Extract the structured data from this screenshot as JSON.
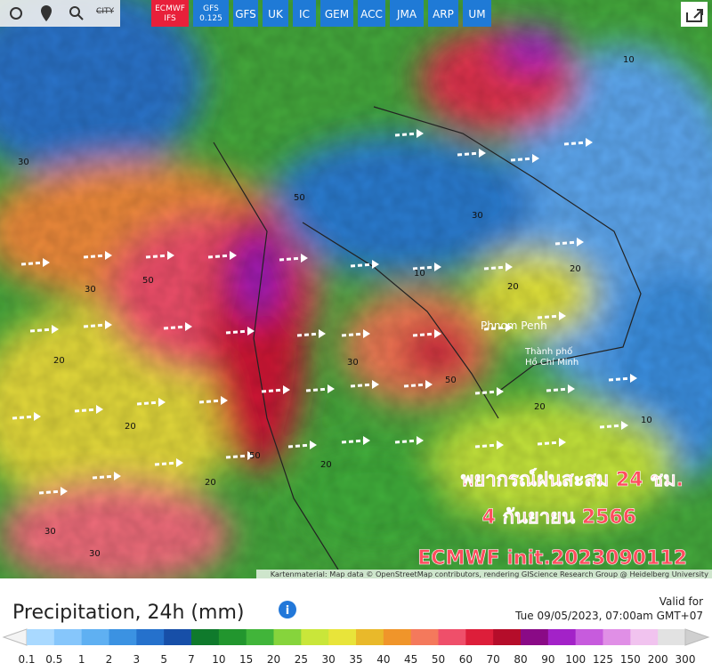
{
  "toolbar": {
    "city": "CITY",
    "models": [
      {
        "lines": [
          "ECMWF",
          "IFS"
        ],
        "active": true
      },
      {
        "lines": [
          "GFS",
          "0.125"
        ],
        "active": false
      },
      {
        "lines": [
          "GFS"
        ],
        "active": false
      },
      {
        "lines": [
          "UK"
        ],
        "active": false
      },
      {
        "lines": [
          "IC"
        ],
        "active": false
      },
      {
        "lines": [
          "GEM"
        ],
        "active": false
      },
      {
        "lines": [
          "ACC"
        ],
        "active": false
      },
      {
        "lines": [
          "JMA"
        ],
        "active": false
      },
      {
        "lines": [
          "ARP"
        ],
        "active": false
      },
      {
        "lines": [
          "UM"
        ],
        "active": false
      }
    ]
  },
  "map": {
    "places": [
      "Phnom Penh",
      "Thành phố",
      "Hồ Chí Minh"
    ],
    "contour_labels": [
      "30",
      "50",
      "30",
      "20",
      "20",
      "50",
      "30",
      "20",
      "30",
      "10",
      "20",
      "50",
      "20",
      "10",
      "30",
      "20",
      "10",
      "50",
      "20",
      "30"
    ],
    "overlay": [
      "พยากรณ์ฝนสะสม 24 ชม.",
      "4 กันยายน 2566",
      "ECMWF init.2023090112"
    ],
    "attribution": "Kartenmaterial: Map data © OpenStreetMap contributors, rendering GIScience Research Group @ Heidelberg University"
  },
  "legend": {
    "title": "Precipitation, 24h (mm)",
    "valid_label": "Valid for",
    "valid_time": "Tue 09/05/2023, 07:00am GMT+07",
    "labels": [
      "0.1",
      "0.5",
      "1",
      "2",
      "3",
      "5",
      "7",
      "10",
      "15",
      "20",
      "25",
      "30",
      "35",
      "40",
      "45",
      "50",
      "60",
      "70",
      "80",
      "90",
      "100",
      "125",
      "150",
      "200",
      "300"
    ],
    "colors": [
      "#a9d9ff",
      "#86c6fb",
      "#5fb0f2",
      "#3b92e2",
      "#2571cc",
      "#174fa8",
      "#0f7a2c",
      "#22962e",
      "#41b53a",
      "#86d43c",
      "#c9e63a",
      "#e8e43a",
      "#e9b92a",
      "#f0952a",
      "#f4795c",
      "#ef4f6a",
      "#dd1e3a",
      "#b50d2a",
      "#8a0a86",
      "#a322c8",
      "#c75bdd",
      "#e08fe6",
      "#f1c3ef",
      "#e2e2e2"
    ]
  }
}
